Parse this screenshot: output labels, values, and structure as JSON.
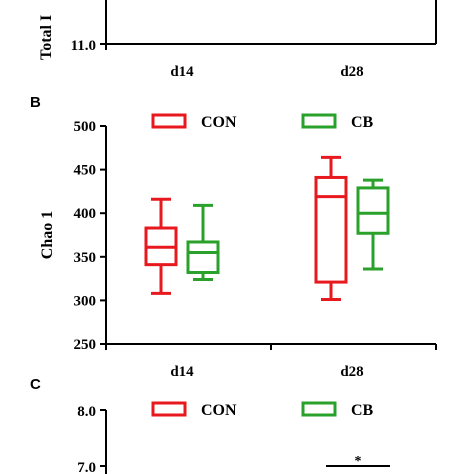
{
  "panels": {
    "A": {
      "ylabel": "Total I",
      "y_visible_min": "11.0",
      "x_categories": [
        "d14",
        "d28"
      ]
    },
    "B": {
      "label": "B"
    },
    "C": {
      "label": "C",
      "y_ticks": [
        "8.0",
        "7.0"
      ],
      "significance": "*"
    }
  },
  "colors": {
    "CON": "#e8191e",
    "CB": "#2aa12a",
    "axis": "#000000"
  },
  "chart_data": [
    {
      "type": "box",
      "panel": "B",
      "title": "",
      "xlabel": "",
      "ylabel": "Chao 1",
      "categories": [
        "d14",
        "d28"
      ],
      "ylim": [
        250,
        500
      ],
      "yticks": [
        250,
        300,
        350,
        400,
        450,
        500
      ],
      "legend": {
        "placement": "top"
      },
      "grid": false,
      "series": [
        {
          "name": "CON",
          "color": "#e8191e",
          "boxes": [
            {
              "category": "d14",
              "min": 308,
              "q1": 341,
              "median": 361,
              "q3": 383,
              "max": 416
            },
            {
              "category": "d28",
              "min": 301,
              "q1": 321,
              "median": 419,
              "q3": 441,
              "max": 464
            }
          ]
        },
        {
          "name": "CB",
          "color": "#2aa12a",
          "boxes": [
            {
              "category": "d14",
              "min": 324,
              "q1": 332,
              "median": 355,
              "q3": 367,
              "max": 409
            },
            {
              "category": "d28",
              "min": 336,
              "q1": 377,
              "median": 400,
              "q3": 429,
              "max": 438
            }
          ]
        }
      ]
    }
  ]
}
